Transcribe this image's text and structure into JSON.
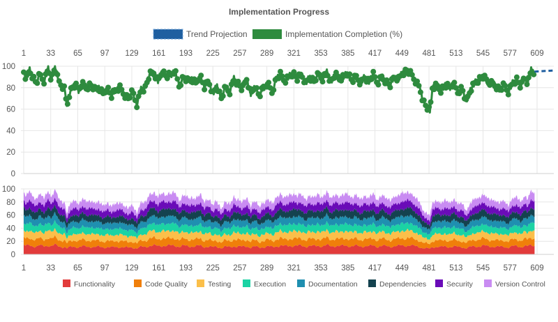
{
  "chart_data": [
    {
      "type": "line",
      "title": "Implementation Progress",
      "x_range": [
        1,
        609
      ],
      "x_ticks": [
        1,
        33,
        65,
        97,
        129,
        161,
        193,
        225,
        257,
        289,
        321,
        353,
        385,
        417,
        449,
        481,
        513,
        545,
        577,
        609
      ],
      "ylim": [
        0,
        100
      ],
      "y_ticks": [
        0,
        20,
        40,
        60,
        80,
        100
      ],
      "grid": true,
      "legend_position": "top",
      "series": [
        {
          "name": "Implementation Completion (%)",
          "color": "#2e8b3e",
          "style": "solid-with-points",
          "keypoints": [
            [
              1,
              95
            ],
            [
              4,
              88
            ],
            [
              8,
              96
            ],
            [
              12,
              90
            ],
            [
              16,
              84
            ],
            [
              20,
              92
            ],
            [
              25,
              86
            ],
            [
              30,
              97
            ],
            [
              34,
              88
            ],
            [
              38,
              99
            ],
            [
              42,
              86
            ],
            [
              46,
              82
            ],
            [
              50,
              78
            ],
            [
              52,
              60
            ],
            [
              54,
              72
            ],
            [
              58,
              80
            ],
            [
              62,
              82
            ],
            [
              66,
              78
            ],
            [
              70,
              84
            ],
            [
              75,
              80
            ],
            [
              80,
              83
            ],
            [
              85,
              78
            ],
            [
              90,
              80
            ],
            [
              95,
              74
            ],
            [
              100,
              80
            ],
            [
              105,
              72
            ],
            [
              110,
              78
            ],
            [
              115,
              80
            ],
            [
              120,
              74
            ],
            [
              125,
              70
            ],
            [
              130,
              76
            ],
            [
              135,
              64
            ],
            [
              140,
              78
            ],
            [
              145,
              80
            ],
            [
              150,
              92
            ],
            [
              155,
              94
            ],
            [
              160,
              86
            ],
            [
              165,
              96
            ],
            [
              170,
              90
            ],
            [
              175,
              92
            ],
            [
              180,
              96
            ],
            [
              185,
              82
            ],
            [
              190,
              90
            ],
            [
              195,
              86
            ],
            [
              200,
              88
            ],
            [
              205,
              84
            ],
            [
              210,
              92
            ],
            [
              215,
              80
            ],
            [
              220,
              86
            ],
            [
              225,
              74
            ],
            [
              230,
              82
            ],
            [
              235,
              70
            ],
            [
              240,
              80
            ],
            [
              245,
              76
            ],
            [
              250,
              88
            ],
            [
              255,
              84
            ],
            [
              260,
              78
            ],
            [
              265,
              88
            ],
            [
              270,
              74
            ],
            [
              275,
              82
            ],
            [
              280,
              72
            ],
            [
              285,
              80
            ],
            [
              290,
              84
            ],
            [
              295,
              76
            ],
            [
              300,
              88
            ],
            [
              305,
              92
            ],
            [
              310,
              86
            ],
            [
              315,
              90
            ],
            [
              320,
              94
            ],
            [
              325,
              88
            ],
            [
              330,
              92
            ],
            [
              335,
              84
            ],
            [
              340,
              90
            ],
            [
              345,
              86
            ],
            [
              350,
              92
            ],
            [
              355,
              88
            ],
            [
              360,
              94
            ],
            [
              365,
              86
            ],
            [
              370,
              92
            ],
            [
              375,
              88
            ],
            [
              380,
              90
            ],
            [
              385,
              94
            ],
            [
              390,
              86
            ],
            [
              395,
              90
            ],
            [
              400,
              84
            ],
            [
              405,
              90
            ],
            [
              410,
              86
            ],
            [
              415,
              92
            ],
            [
              420,
              84
            ],
            [
              425,
              90
            ],
            [
              430,
              86
            ],
            [
              435,
              82
            ],
            [
              440,
              90
            ],
            [
              445,
              88
            ],
            [
              450,
              94
            ],
            [
              455,
              96
            ],
            [
              460,
              92
            ],
            [
              465,
              86
            ],
            [
              470,
              80
            ],
            [
              474,
              68
            ],
            [
              478,
              62
            ],
            [
              482,
              58
            ],
            [
              485,
              80
            ],
            [
              490,
              82
            ],
            [
              495,
              78
            ],
            [
              500,
              82
            ],
            [
              505,
              80
            ],
            [
              510,
              84
            ],
            [
              515,
              76
            ],
            [
              520,
              80
            ],
            [
              525,
              66
            ],
            [
              530,
              78
            ],
            [
              535,
              84
            ],
            [
              540,
              88
            ],
            [
              545,
              90
            ],
            [
              550,
              86
            ],
            [
              555,
              84
            ],
            [
              560,
              82
            ],
            [
              565,
              78
            ],
            [
              570,
              82
            ],
            [
              575,
              76
            ],
            [
              580,
              84
            ],
            [
              585,
              88
            ],
            [
              590,
              80
            ],
            [
              594,
              90
            ],
            [
              598,
              84
            ],
            [
              602,
              96
            ],
            [
              606,
              95
            ]
          ]
        },
        {
          "name": "Trend Projection",
          "color": "#1f5fa0",
          "style": "dashed",
          "keypoints": [
            [
              606,
              95
            ],
            [
              630,
              96
            ]
          ]
        }
      ]
    },
    {
      "type": "area",
      "stacked": true,
      "x_range": [
        1,
        609
      ],
      "x_ticks": [
        1,
        33,
        65,
        97,
        129,
        161,
        193,
        225,
        257,
        289,
        321,
        353,
        385,
        417,
        449,
        481,
        513,
        545,
        577,
        609
      ],
      "ylim": [
        0,
        100
      ],
      "y_ticks": [
        0,
        20,
        40,
        60,
        80,
        100
      ],
      "grid": true,
      "legend_position": "bottom",
      "series": [
        {
          "name": "Functionality",
          "color": "#e23b3b",
          "base_share": 12
        },
        {
          "name": "Code Quality",
          "color": "#f07f0a",
          "base_share": 10
        },
        {
          "name": "Testing",
          "color": "#fbbf4a",
          "base_share": 10
        },
        {
          "name": "Execution",
          "color": "#1bd3a4",
          "base_share": 10
        },
        {
          "name": "Documentation",
          "color": "#1f8fb0",
          "base_share": 10
        },
        {
          "name": "Dependencies",
          "color": "#14424f",
          "base_share": 10
        },
        {
          "name": "Security",
          "color": "#6a0bb8",
          "base_share": 10
        },
        {
          "name": "Version Control",
          "color": "#c98cf2",
          "base_share": 11
        }
      ]
    }
  ]
}
